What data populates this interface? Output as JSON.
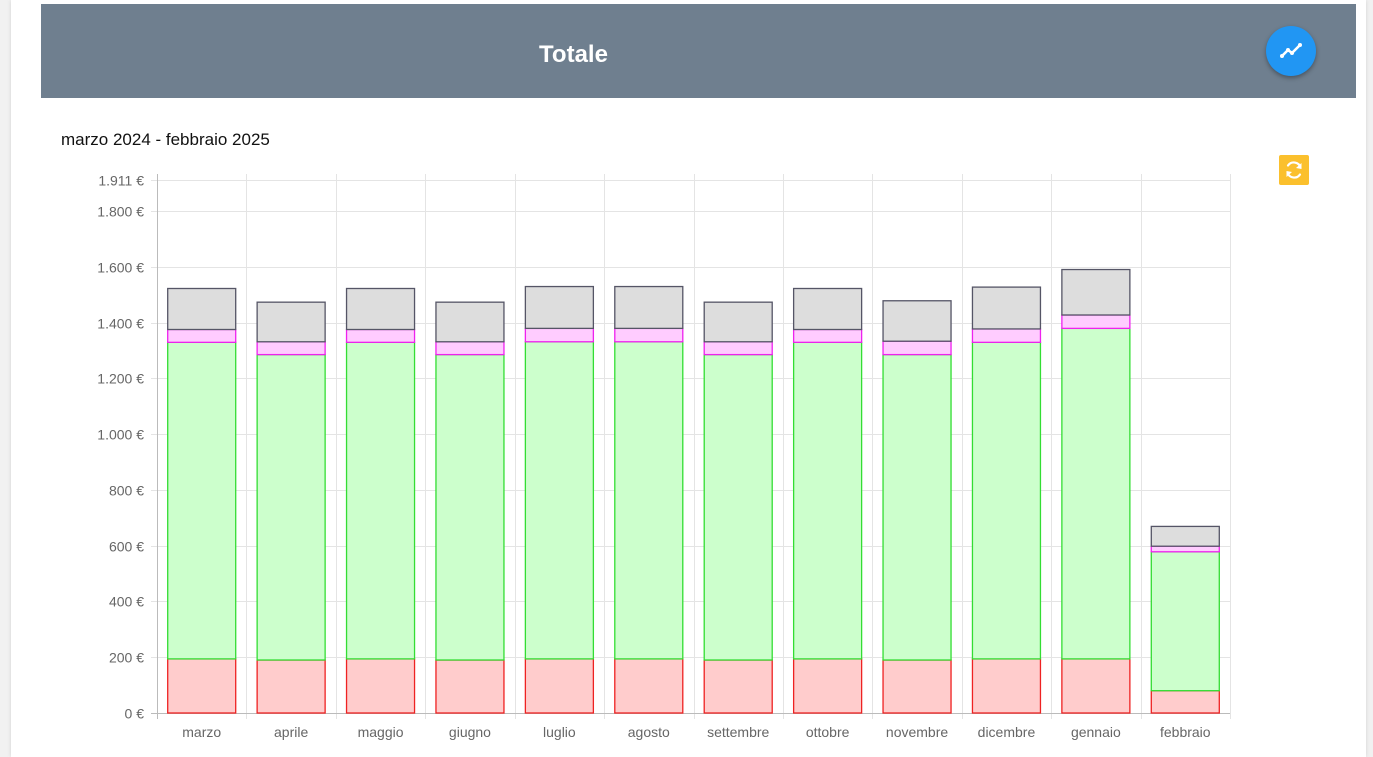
{
  "header": {
    "title": "Totale",
    "trend_button_icon": "trending-line-icon"
  },
  "period_label": "marzo 2024 - febbraio 2025",
  "refresh_icon": "refresh-icon",
  "colors": {
    "header_bg": "#6f7f8f",
    "fab": "#2196f3",
    "refresh": "#fbc02d"
  },
  "chart_data": {
    "type": "bar",
    "stacked": true,
    "categories": [
      "marzo",
      "aprile",
      "maggio",
      "giugno",
      "luglio",
      "agosto",
      "settembre",
      "ottobre",
      "novembre",
      "dicembre",
      "gennaio",
      "febbraio"
    ],
    "y_ticks": [
      {
        "value": 0,
        "label": "0 €"
      },
      {
        "value": 200,
        "label": "200 €"
      },
      {
        "value": 400,
        "label": "400 €"
      },
      {
        "value": 600,
        "label": "600 €"
      },
      {
        "value": 800,
        "label": "800 €"
      },
      {
        "value": 1000,
        "label": "1.000 €"
      },
      {
        "value": 1200,
        "label": "1.200 €"
      },
      {
        "value": 1400,
        "label": "1.400 €"
      },
      {
        "value": 1600,
        "label": "1.600 €"
      },
      {
        "value": 1800,
        "label": "1.800 €"
      },
      {
        "value": 1911,
        "label": "1.911 €"
      }
    ],
    "ylim": [
      0,
      1911
    ],
    "grid": true,
    "legend": "none",
    "series": [
      {
        "fill": "#ffcccc",
        "stroke": "#ee2222",
        "values": [
          194,
          190,
          194,
          190,
          194,
          194,
          190,
          194,
          190,
          194,
          194,
          80
        ]
      },
      {
        "fill": "#ccffcc",
        "stroke": "#33dd33",
        "values": [
          1135,
          1095,
          1135,
          1095,
          1137,
          1137,
          1095,
          1135,
          1095,
          1135,
          1185,
          498
        ]
      },
      {
        "fill": "#ffccff",
        "stroke": "#ee22ee",
        "values": [
          46,
          46,
          46,
          46,
          48,
          48,
          46,
          46,
          48,
          48,
          48,
          20
        ]
      },
      {
        "fill": "#dddddd",
        "stroke": "#555566",
        "values": [
          147,
          142,
          147,
          142,
          150,
          150,
          142,
          147,
          145,
          150,
          163,
          71
        ]
      }
    ]
  }
}
